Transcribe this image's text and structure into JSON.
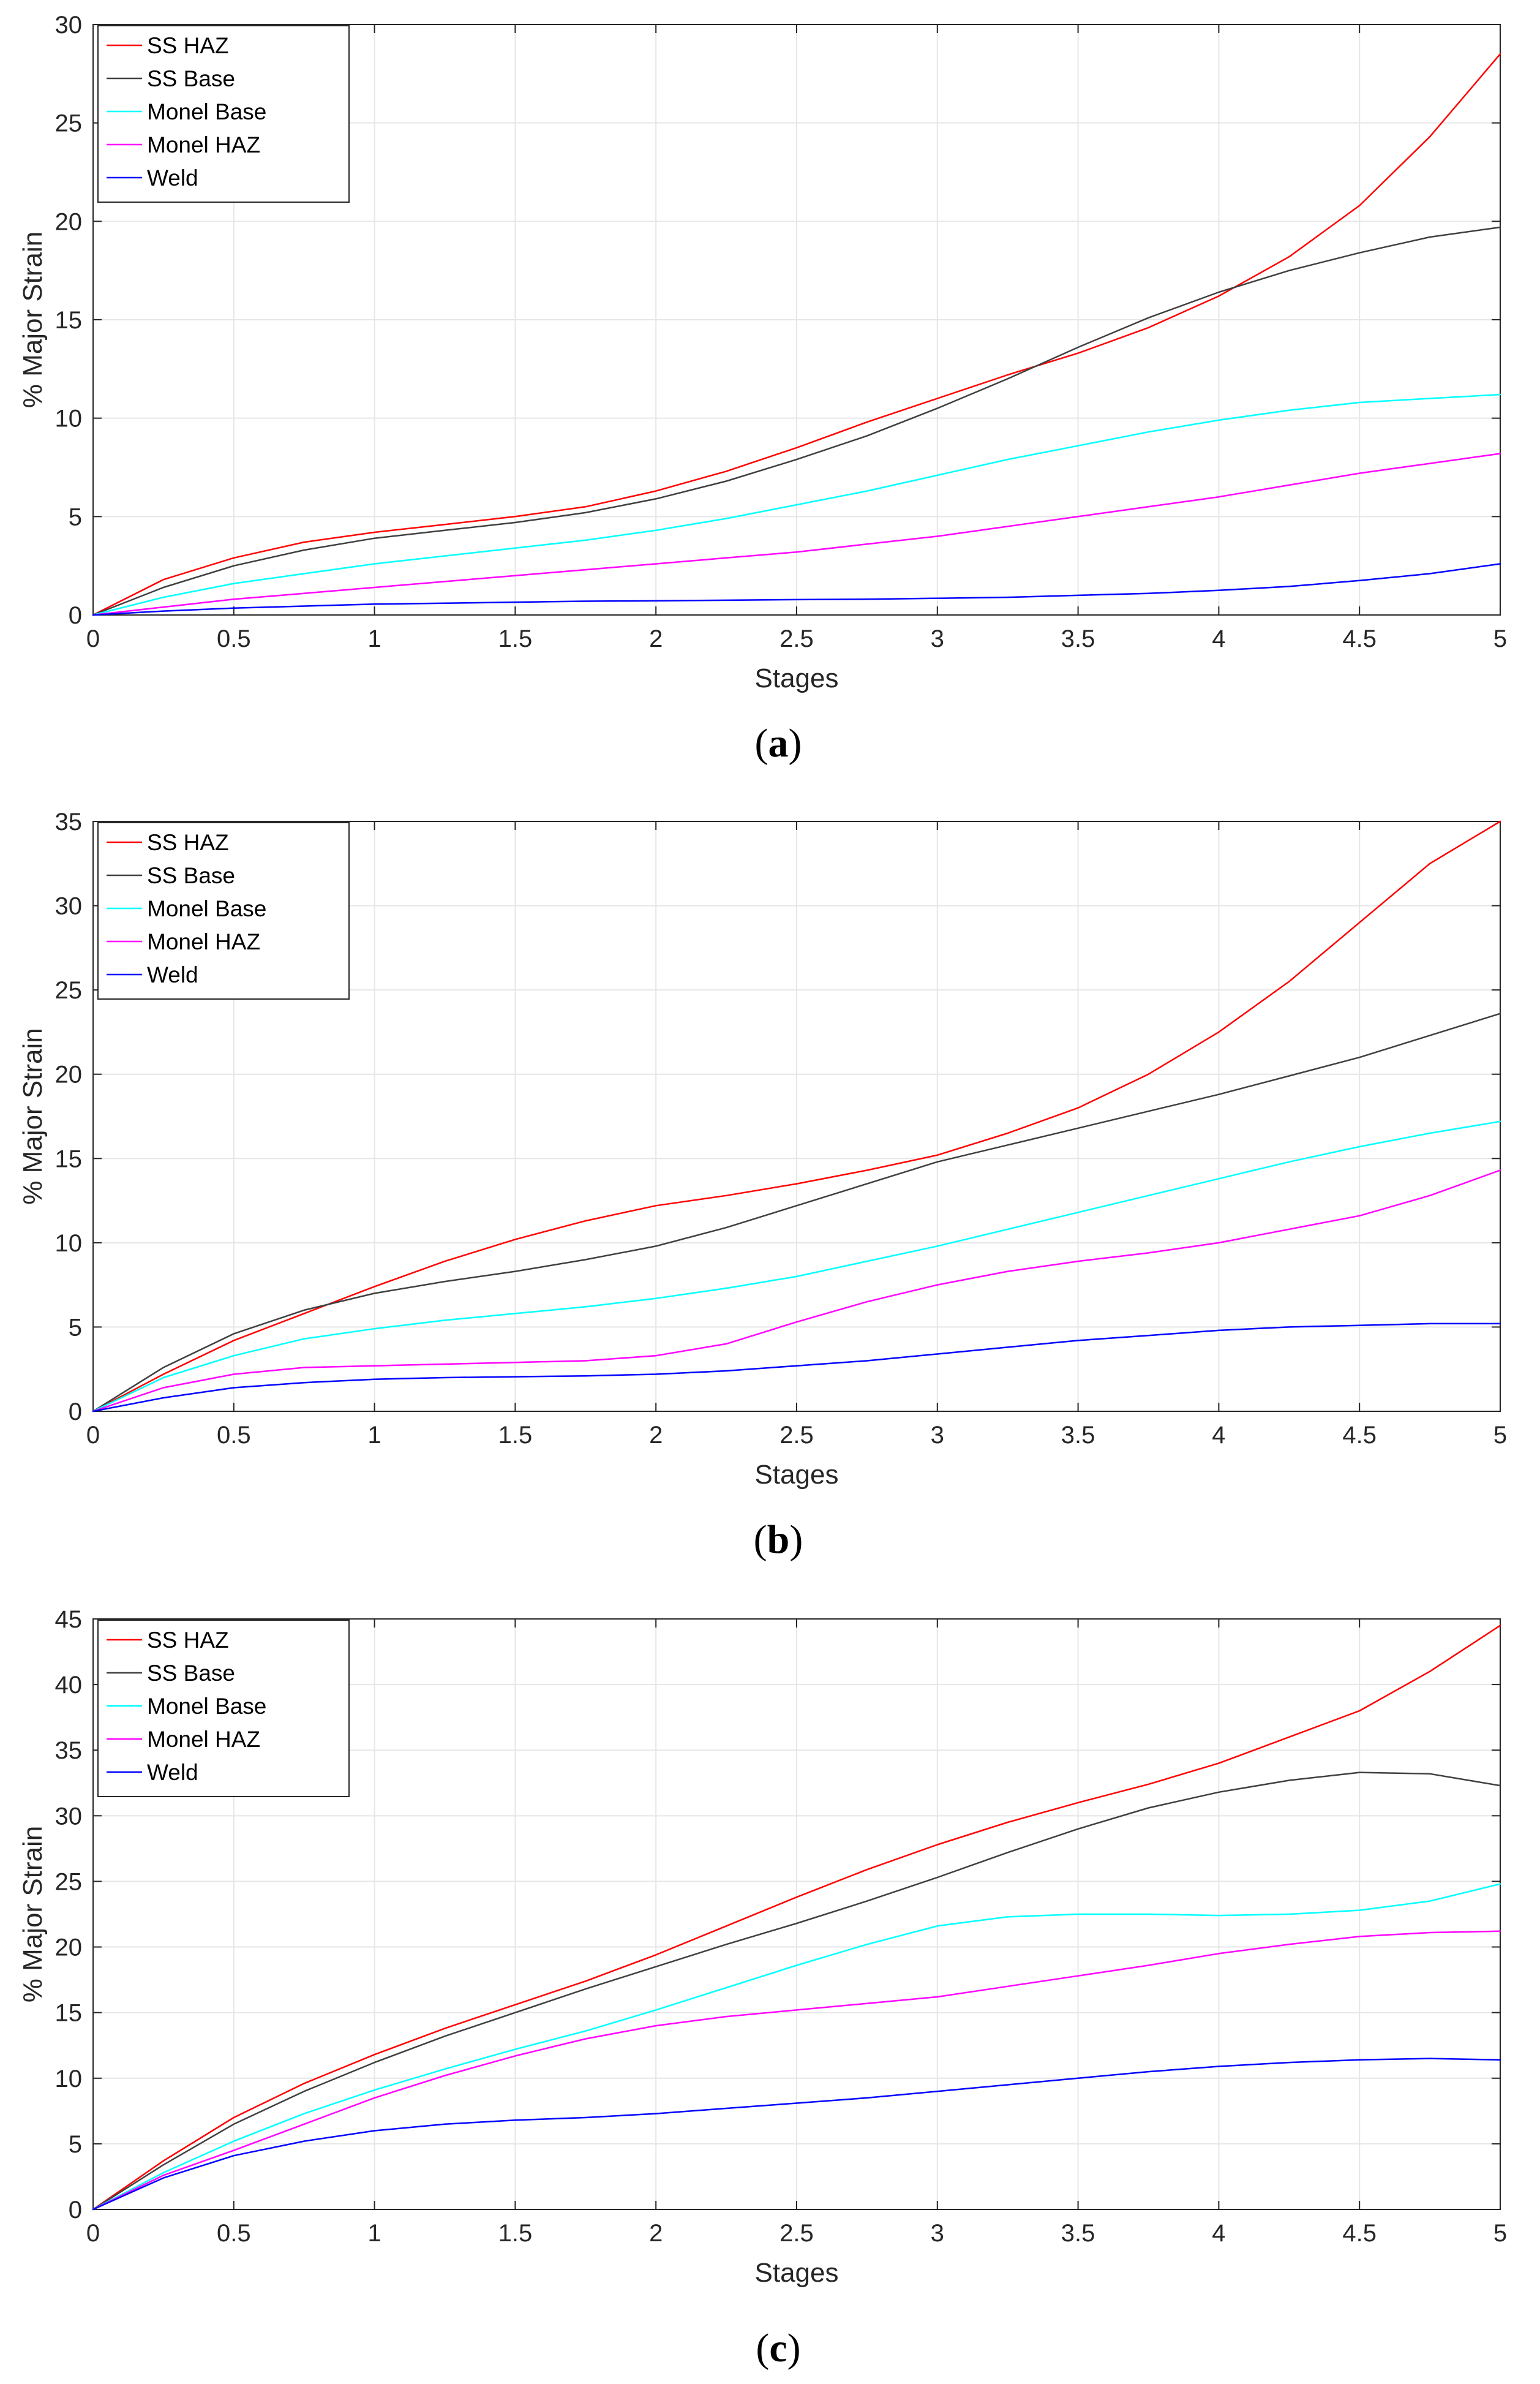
{
  "chart_data": [
    {
      "type": "line",
      "caption_open": "(",
      "caption_letter": "a",
      "caption_close": ")",
      "xlabel": "Stages",
      "ylabel": "% Major Strain",
      "xlim": [
        0,
        5
      ],
      "ylim": [
        0,
        30
      ],
      "xticks": [
        0,
        0.5,
        1,
        1.5,
        2,
        2.5,
        3,
        3.5,
        4,
        4.5,
        5
      ],
      "yticks": [
        0,
        5,
        10,
        15,
        20,
        25,
        30
      ],
      "grid": true,
      "legend_position": "top-left",
      "x": [
        0,
        0.25,
        0.5,
        0.75,
        1,
        1.25,
        1.5,
        1.75,
        2,
        2.25,
        2.5,
        2.75,
        3,
        3.25,
        3.5,
        3.75,
        4,
        4.25,
        4.5,
        4.75,
        5
      ],
      "series": [
        {
          "name": "SS HAZ",
          "color": "#ff0000",
          "values": [
            0,
            1.8,
            2.9,
            3.7,
            4.2,
            4.6,
            5.0,
            5.5,
            6.3,
            7.3,
            8.5,
            9.8,
            11.0,
            12.2,
            13.3,
            14.6,
            16.2,
            18.2,
            20.8,
            24.3,
            28.5
          ]
        },
        {
          "name": "SS Base",
          "color": "#404040",
          "values": [
            0,
            1.4,
            2.5,
            3.3,
            3.9,
            4.3,
            4.7,
            5.2,
            5.9,
            6.8,
            7.9,
            9.1,
            10.5,
            12.0,
            13.6,
            15.1,
            16.4,
            17.5,
            18.4,
            19.2,
            19.7
          ]
        },
        {
          "name": "Monel Base",
          "color": "#00ffff",
          "values": [
            0,
            0.9,
            1.6,
            2.1,
            2.6,
            3.0,
            3.4,
            3.8,
            4.3,
            4.9,
            5.6,
            6.3,
            7.1,
            7.9,
            8.6,
            9.3,
            9.9,
            10.4,
            10.8,
            11.0,
            11.2
          ]
        },
        {
          "name": "Monel HAZ",
          "color": "#ff00ff",
          "values": [
            0,
            0.4,
            0.8,
            1.1,
            1.4,
            1.7,
            2.0,
            2.3,
            2.6,
            2.9,
            3.2,
            3.6,
            4.0,
            4.5,
            5.0,
            5.5,
            6.0,
            6.6,
            7.2,
            7.7,
            8.2
          ]
        },
        {
          "name": "Weld",
          "color": "#0000ff",
          "values": [
            0,
            0.2,
            0.35,
            0.45,
            0.55,
            0.6,
            0.65,
            0.7,
            0.72,
            0.75,
            0.78,
            0.8,
            0.85,
            0.9,
            1.0,
            1.1,
            1.25,
            1.45,
            1.75,
            2.1,
            2.6
          ]
        }
      ]
    },
    {
      "type": "line",
      "caption_open": "(",
      "caption_letter": "b",
      "caption_close": ")",
      "xlabel": "Stages",
      "ylabel": "% Major Strain",
      "xlim": [
        0,
        5
      ],
      "ylim": [
        0,
        35
      ],
      "xticks": [
        0,
        0.5,
        1,
        1.5,
        2,
        2.5,
        3,
        3.5,
        4,
        4.5,
        5
      ],
      "yticks": [
        0,
        5,
        10,
        15,
        20,
        25,
        30,
        35
      ],
      "grid": true,
      "legend_position": "top-left",
      "x": [
        0,
        0.25,
        0.5,
        0.75,
        1,
        1.25,
        1.5,
        1.75,
        2,
        2.25,
        2.5,
        2.75,
        3,
        3.25,
        3.5,
        3.75,
        4,
        4.25,
        4.5,
        4.75,
        5
      ],
      "series": [
        {
          "name": "SS HAZ",
          "color": "#ff0000",
          "values": [
            0,
            2.2,
            4.2,
            5.8,
            7.4,
            8.9,
            10.2,
            11.3,
            12.2,
            12.8,
            13.5,
            14.3,
            15.2,
            16.5,
            18.0,
            20.0,
            22.5,
            25.5,
            29.0,
            32.5,
            35.0
          ]
        },
        {
          "name": "SS Base",
          "color": "#404040",
          "values": [
            0,
            2.6,
            4.6,
            6.0,
            7.0,
            7.7,
            8.3,
            9.0,
            9.8,
            10.9,
            12.2,
            13.5,
            14.8,
            15.8,
            16.8,
            17.8,
            18.8,
            19.9,
            21.0,
            22.3,
            23.6
          ]
        },
        {
          "name": "Monel Base",
          "color": "#00ffff",
          "values": [
            0,
            2.0,
            3.3,
            4.3,
            4.9,
            5.4,
            5.8,
            6.2,
            6.7,
            7.3,
            8.0,
            8.9,
            9.8,
            10.8,
            11.8,
            12.8,
            13.8,
            14.8,
            15.7,
            16.5,
            17.2
          ]
        },
        {
          "name": "Monel HAZ",
          "color": "#ff00ff",
          "values": [
            0,
            1.4,
            2.2,
            2.6,
            2.7,
            2.8,
            2.9,
            3.0,
            3.3,
            4.0,
            5.3,
            6.5,
            7.5,
            8.3,
            8.9,
            9.4,
            10.0,
            10.8,
            11.6,
            12.8,
            14.3
          ]
        },
        {
          "name": "Weld",
          "color": "#0000ff",
          "values": [
            0,
            0.8,
            1.4,
            1.7,
            1.9,
            2.0,
            2.05,
            2.1,
            2.2,
            2.4,
            2.7,
            3.0,
            3.4,
            3.8,
            4.2,
            4.5,
            4.8,
            5.0,
            5.1,
            5.2,
            5.2
          ]
        }
      ]
    },
    {
      "type": "line",
      "caption_open": "(",
      "caption_letter": "c",
      "caption_close": ")",
      "xlabel": "Stages",
      "ylabel": "% Major Strain",
      "xlim": [
        0,
        5
      ],
      "ylim": [
        0,
        45
      ],
      "xticks": [
        0,
        0.5,
        1,
        1.5,
        2,
        2.5,
        3,
        3.5,
        4,
        4.5,
        5
      ],
      "yticks": [
        0,
        5,
        10,
        15,
        20,
        25,
        30,
        35,
        40,
        45
      ],
      "grid": true,
      "legend_position": "top-left",
      "x": [
        0,
        0.25,
        0.5,
        0.75,
        1,
        1.25,
        1.5,
        1.75,
        2,
        2.25,
        2.5,
        2.75,
        3,
        3.25,
        3.5,
        3.75,
        4,
        4.25,
        4.5,
        4.75,
        5
      ],
      "series": [
        {
          "name": "SS HAZ",
          "color": "#ff0000",
          "values": [
            0,
            3.7,
            7.0,
            9.6,
            11.8,
            13.8,
            15.6,
            17.4,
            19.4,
            21.6,
            23.8,
            25.9,
            27.8,
            29.5,
            31.0,
            32.4,
            34.0,
            36.0,
            38.0,
            41.0,
            44.5
          ]
        },
        {
          "name": "SS Base",
          "color": "#404040",
          "values": [
            0,
            3.4,
            6.5,
            9.0,
            11.2,
            13.2,
            15.0,
            16.8,
            18.5,
            20.2,
            21.8,
            23.5,
            25.3,
            27.2,
            29.0,
            30.6,
            31.8,
            32.7,
            33.3,
            33.2,
            32.3
          ]
        },
        {
          "name": "Monel Base",
          "color": "#00ffff",
          "values": [
            0,
            2.8,
            5.2,
            7.3,
            9.1,
            10.7,
            12.2,
            13.6,
            15.2,
            16.9,
            18.6,
            20.2,
            21.6,
            22.3,
            22.5,
            22.5,
            22.4,
            22.5,
            22.8,
            23.5,
            24.8
          ]
        },
        {
          "name": "Monel HAZ",
          "color": "#ff00ff",
          "values": [
            0,
            2.6,
            4.5,
            6.5,
            8.5,
            10.2,
            11.7,
            13.0,
            14.0,
            14.7,
            15.2,
            15.7,
            16.2,
            17.0,
            17.8,
            18.6,
            19.5,
            20.2,
            20.8,
            21.1,
            21.2
          ]
        },
        {
          "name": "Weld",
          "color": "#0000ff",
          "values": [
            0,
            2.4,
            4.1,
            5.2,
            6.0,
            6.5,
            6.8,
            7.0,
            7.3,
            7.7,
            8.1,
            8.5,
            9.0,
            9.5,
            10.0,
            10.5,
            10.9,
            11.2,
            11.4,
            11.5,
            11.4
          ]
        }
      ]
    }
  ]
}
